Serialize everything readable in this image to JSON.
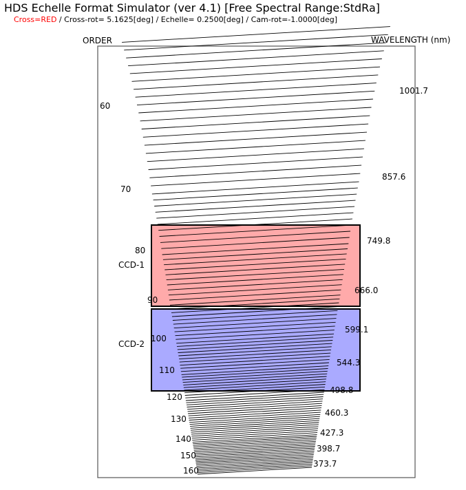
{
  "title": "HDS Echelle Format Simulator (ver 4.1) [Free Spectral Range:StdRa]",
  "settings": {
    "cross_label": "Cross=RED",
    "rest": " / Cross-rot=  5.1625[deg] / Echelle=  0.2500[deg] / Cam-rot=-1.0000[deg]"
  },
  "axes": {
    "order_label": "ORDER",
    "wavelength_label": "WAVELENGTH (nm)"
  },
  "orders": {
    "first": 51,
    "last": 160,
    "labels": [
      "60",
      "70",
      "80",
      "90",
      "100",
      "110",
      "120",
      "130",
      "140",
      "150",
      "160"
    ]
  },
  "wavelength_labels": [
    "1001.7",
    "857.6",
    "749.8",
    "666.0",
    "599.1",
    "544.3",
    "498.8",
    "460.3",
    "427.3",
    "398.7",
    "373.7"
  ],
  "ccds": [
    {
      "label": "CCD-1",
      "color": "#ffaaaa"
    },
    {
      "label": "CCD-2",
      "color": "#aaaaff"
    }
  ],
  "colors": {
    "order_line": "#000000",
    "frame": "#555555"
  }
}
